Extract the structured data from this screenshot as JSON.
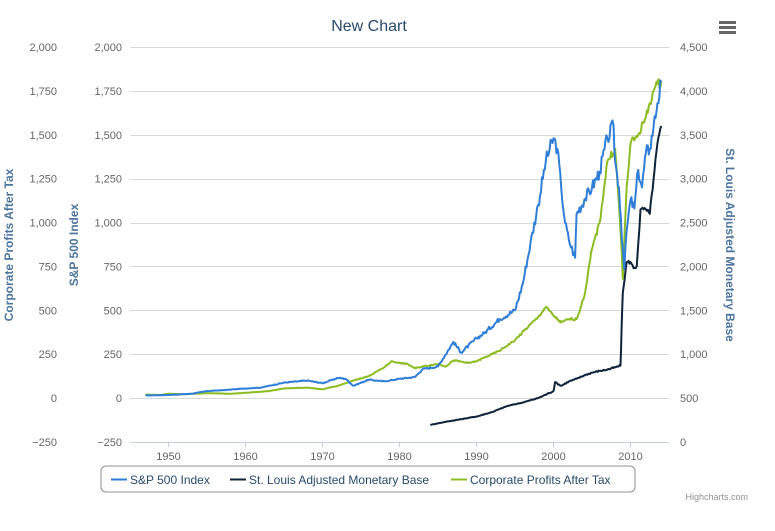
{
  "chart_data": {
    "type": "line",
    "title": "New Chart",
    "credit": "Highcharts.com",
    "menu_icon": "hamburger-menu-icon",
    "x_axis": {
      "min": 1945,
      "max": 2015,
      "ticks": [
        1950,
        1960,
        1970,
        1980,
        1990,
        2000,
        2010
      ],
      "tick_labels": [
        "1950",
        "1960",
        "1970",
        "1980",
        "1990",
        "2000",
        "2010"
      ]
    },
    "y_axes": [
      {
        "id": "profits",
        "title": "Corporate Profits After Tax",
        "min": -250,
        "max": 2000,
        "ticks": [
          -250,
          0,
          250,
          500,
          750,
          1000,
          1250,
          1500,
          1750,
          2000
        ],
        "tick_labels": [
          "−250",
          "0",
          "250",
          "500",
          "750",
          "1,000",
          "1,250",
          "1,500",
          "1,750",
          "2,000"
        ]
      },
      {
        "id": "sp500",
        "title": "S&P 500 Index",
        "min": -250,
        "max": 2000,
        "ticks": [
          -250,
          0,
          250,
          500,
          750,
          1000,
          1250,
          1500,
          1750,
          2000
        ],
        "tick_labels": [
          "−250",
          "0",
          "250",
          "500",
          "750",
          "1,000",
          "1,250",
          "1,500",
          "1,750",
          "2,000"
        ]
      },
      {
        "id": "monetary",
        "title": "St. Louis Adjusted Monetary Base",
        "min": 0,
        "max": 4500,
        "ticks": [
          0,
          500,
          1000,
          1500,
          2000,
          2500,
          3000,
          3500,
          4000,
          4500
        ],
        "tick_labels": [
          "0",
          "500",
          "1,000",
          "1,500",
          "2,000",
          "2,500",
          "3,000",
          "3,500",
          "4,000",
          "4,500"
        ]
      }
    ],
    "series": [
      {
        "name": "S&P 500 Index",
        "axis": "sp500",
        "color": "#2f7ed8",
        "x": [
          1947,
          1950,
          1953,
          1955,
          1957,
          1960,
          1962,
          1965,
          1968,
          1970,
          1972,
          1973,
          1974,
          1976,
          1978,
          1980,
          1982,
          1983,
          1985,
          1987,
          1988,
          1990,
          1991,
          1993,
          1995,
          1996,
          1997,
          1998,
          1999,
          2000,
          2000.5,
          2001,
          2001.5,
          2002,
          2002.8,
          2003,
          2004,
          2005,
          2006,
          2007,
          2007.8,
          2008,
          2008.5,
          2009,
          2009.2,
          2009.5,
          2010,
          2010.5,
          2011,
          2011.5,
          2012,
          2012.5,
          2013,
          2013.5,
          2014
        ],
        "y": [
          15,
          18,
          25,
          40,
          45,
          55,
          60,
          88,
          100,
          85,
          115,
          110,
          70,
          105,
          95,
          110,
          120,
          165,
          180,
          320,
          260,
          340,
          370,
          450,
          500,
          650,
          880,
          1100,
          1350,
          1480,
          1420,
          1200,
          1000,
          900,
          800,
          1050,
          1130,
          1200,
          1290,
          1480,
          1550,
          1350,
          1200,
          850,
          735,
          950,
          1130,
          1080,
          1300,
          1200,
          1400,
          1420,
          1550,
          1680,
          1800
        ]
      },
      {
        "name": "St. Louis Adjusted Monetary Base",
        "axis": "monetary",
        "color": "#0d233a",
        "x": [
          1984,
          1986,
          1988,
          1990,
          1992,
          1994,
          1996,
          1998,
          2000,
          2000.2,
          2001,
          2002,
          2003,
          2004,
          2005,
          2006,
          2007,
          2008,
          2008.7,
          2008.85,
          2009,
          2009.5,
          2010,
          2010.4,
          2010.8,
          2011,
          2011.3,
          2011.7,
          2012,
          2012.5,
          2013,
          2013.5,
          2014
        ],
        "y": [
          195,
          230,
          260,
          290,
          340,
          410,
          450,
          500,
          580,
          680,
          640,
          690,
          720,
          760,
          790,
          810,
          825,
          850,
          870,
          1300,
          1700,
          2050,
          2050,
          1980,
          2000,
          2250,
          2650,
          2650,
          2650,
          2600,
          3000,
          3400,
          3600
        ]
      },
      {
        "name": "Corporate Profits After Tax",
        "axis": "profits",
        "color": "#8bbc21",
        "x": [
          1947,
          1949,
          1950,
          1952,
          1955,
          1958,
          1960,
          1963,
          1965,
          1968,
          1970,
          1972,
          1974,
          1976,
          1978,
          1979,
          1980,
          1981,
          1982,
          1983,
          1985,
          1986,
          1987,
          1989,
          1990,
          1992,
          1993,
          1995,
          1997,
          1998,
          1999,
          2000,
          2001,
          2002,
          2003,
          2004,
          2005,
          2006,
          2007,
          2008,
          2008.5,
          2008.9,
          2009,
          2009.5,
          2010,
          2011,
          2012,
          2012.5,
          2013,
          2013.5,
          2014
        ],
        "y": [
          20,
          18,
          25,
          22,
          28,
          25,
          30,
          40,
          55,
          60,
          50,
          70,
          100,
          125,
          175,
          210,
          200,
          195,
          170,
          180,
          195,
          180,
          215,
          200,
          210,
          250,
          270,
          330,
          420,
          460,
          520,
          470,
          430,
          450,
          450,
          580,
          850,
          1000,
          1350,
          1420,
          1100,
          800,
          680,
          1200,
          1450,
          1500,
          1600,
          1680,
          1750,
          1790,
          1800
        ]
      }
    ],
    "legend": {
      "placement": "bottom-center",
      "items": [
        "S&P 500 Index",
        "St. Louis Adjusted Monetary Base",
        "Corporate Profits After Tax"
      ]
    }
  }
}
